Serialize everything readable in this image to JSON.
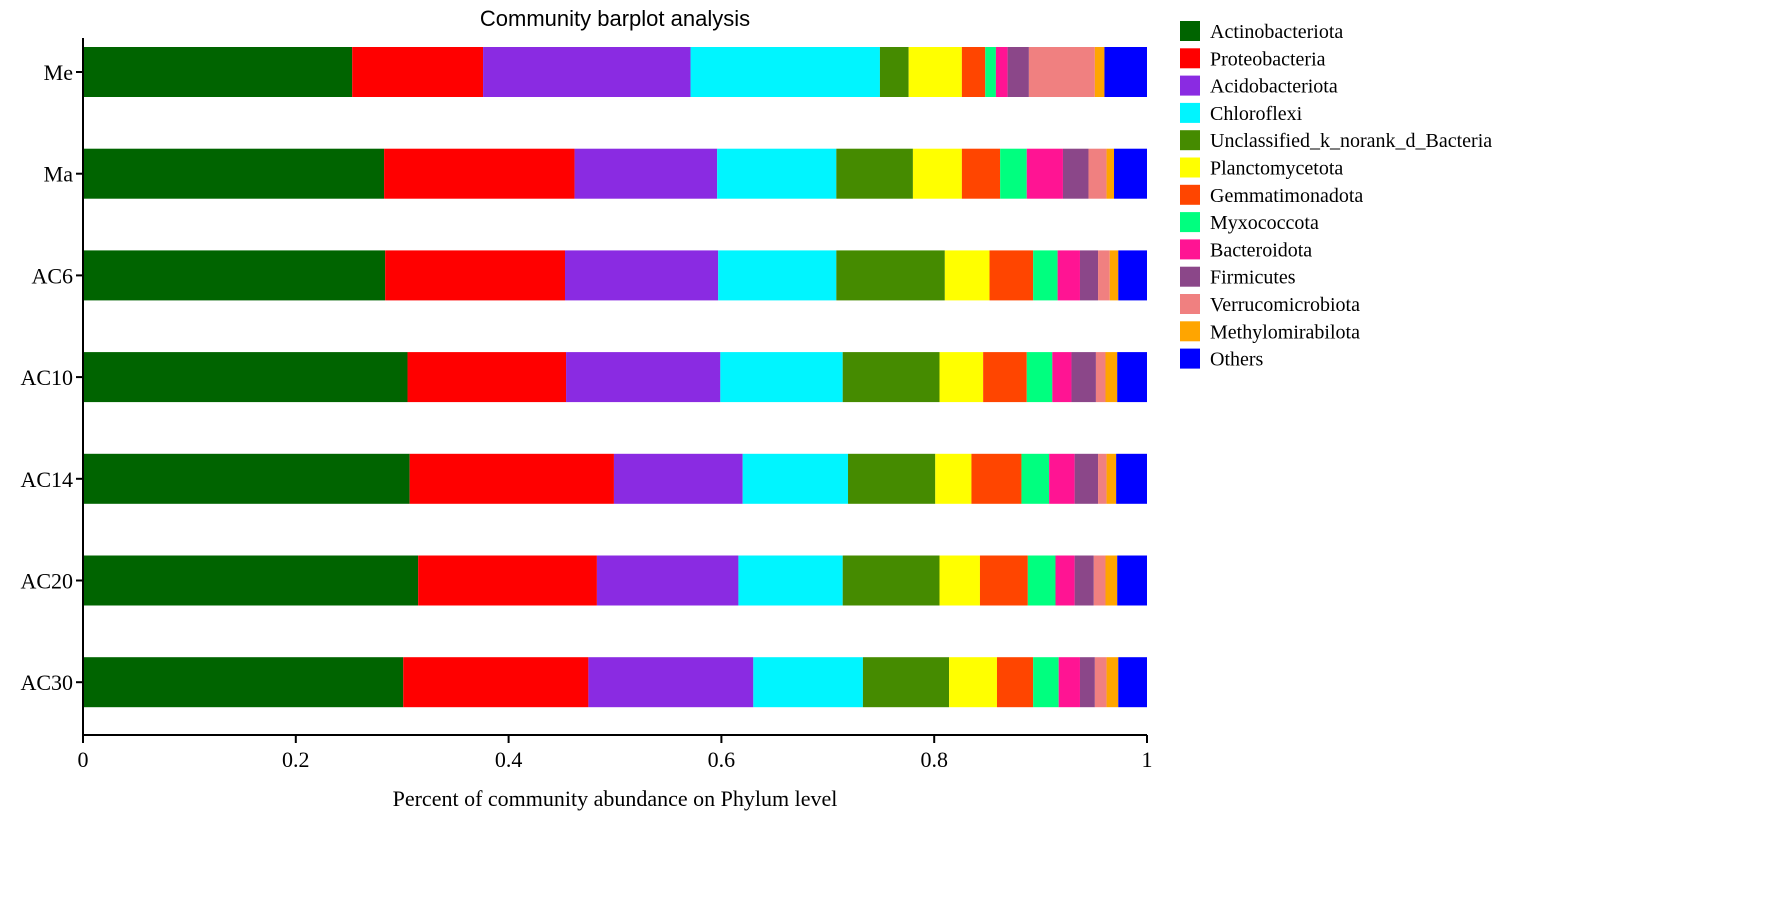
{
  "chart_data": {
    "type": "bar",
    "orientation": "horizontal",
    "stacked": true,
    "title": "Community barplot analysis",
    "xlabel": "Percent of community abundance on Phylum level",
    "ylabel": "",
    "xlim": [
      0,
      1
    ],
    "xticks": [
      "0",
      "0.2",
      "0.4",
      "0.6",
      "0.8",
      "1"
    ],
    "xtick_values": [
      0,
      0.2,
      0.4,
      0.6,
      0.8,
      1
    ],
    "grid": false,
    "legend_position": "right",
    "categories": [
      "Me",
      "Ma",
      "AC6",
      "AC10",
      "AC14",
      "AC20",
      "AC30"
    ],
    "series": [
      {
        "name": "Actinobacteriota",
        "color": "#006400",
        "values": [
          0.253,
          0.283,
          0.284,
          0.305,
          0.307,
          0.315,
          0.301
        ]
      },
      {
        "name": "Proteobacteria",
        "color": "#ff0000",
        "values": [
          0.123,
          0.179,
          0.169,
          0.149,
          0.192,
          0.168,
          0.174
        ]
      },
      {
        "name": "Acidobacteriota",
        "color": "#8a2be2",
        "values": [
          0.195,
          0.134,
          0.144,
          0.145,
          0.121,
          0.133,
          0.155
        ]
      },
      {
        "name": "Chloroflexi",
        "color": "#00f5ff",
        "values": [
          0.178,
          0.112,
          0.111,
          0.115,
          0.099,
          0.098,
          0.103
        ]
      },
      {
        "name": "Unclassified_k_norank_d_Bacteria",
        "color": "#458b00",
        "values": [
          0.027,
          0.072,
          0.102,
          0.091,
          0.082,
          0.091,
          0.081
        ]
      },
      {
        "name": "Planctomycetota",
        "color": "#ffff00",
        "values": [
          0.05,
          0.046,
          0.042,
          0.041,
          0.034,
          0.038,
          0.045
        ]
      },
      {
        "name": "Gemmatimonadota",
        "color": "#ff4500",
        "values": [
          0.022,
          0.036,
          0.041,
          0.041,
          0.047,
          0.045,
          0.034
        ]
      },
      {
        "name": "Myxococcota",
        "color": "#00ff7f",
        "values": [
          0.01,
          0.025,
          0.023,
          0.024,
          0.026,
          0.026,
          0.024
        ]
      },
      {
        "name": "Bacteroidota",
        "color": "#ff1493",
        "values": [
          0.011,
          0.034,
          0.021,
          0.018,
          0.024,
          0.018,
          0.02
        ]
      },
      {
        "name": "Firmicutes",
        "color": "#8b4789",
        "values": [
          0.02,
          0.024,
          0.017,
          0.023,
          0.022,
          0.018,
          0.014
        ]
      },
      {
        "name": "Verrucomicrobiota",
        "color": "#f08080",
        "values": [
          0.062,
          0.017,
          0.011,
          0.009,
          0.008,
          0.011,
          0.011
        ]
      },
      {
        "name": "Methylomirabilota",
        "color": "#ffa500",
        "values": [
          0.009,
          0.007,
          0.008,
          0.011,
          0.009,
          0.011,
          0.011
        ]
      },
      {
        "name": "Others",
        "color": "#0000ff",
        "values": [
          0.04,
          0.031,
          0.027,
          0.028,
          0.029,
          0.028,
          0.027
        ]
      }
    ]
  }
}
